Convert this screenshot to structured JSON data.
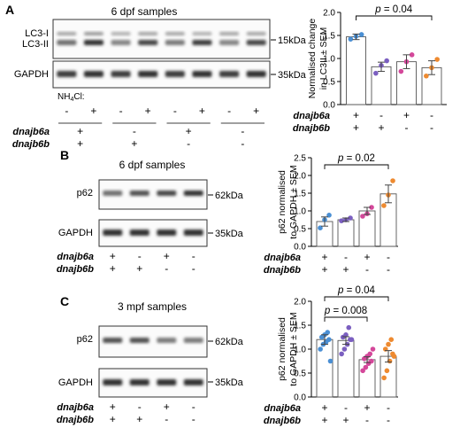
{
  "panels": [
    {
      "letter": "A",
      "title": "6 dpf samples",
      "blot_labels": {
        "top1": "LC3-I",
        "top2": "LC3-II",
        "loading": "GAPDH",
        "mw_top": "15kDa",
        "mw_loading": "35kDa"
      },
      "treatment": {
        "label": "NH4Cl:",
        "label_main": "NH",
        "label_sub": "4",
        "label_end": "Cl:",
        "values": [
          "-",
          "+",
          "-",
          "+",
          "-",
          "+",
          "-",
          "+"
        ]
      },
      "genotype_rows": [
        {
          "label": "dnajb6a",
          "values": [
            "+",
            "-",
            "+",
            "-"
          ]
        },
        {
          "label": "dnajb6b",
          "values": [
            "+",
            "+",
            "-",
            "-"
          ]
        }
      ]
    },
    {
      "letter": "B",
      "title": "6 dpf samples",
      "blot_labels": {
        "top1": "p62",
        "loading": "GAPDH",
        "mw_top": "62kDa",
        "mw_loading": "35kDa"
      },
      "genotype_rows": [
        {
          "label": "dnajb6a",
          "values": [
            "+",
            "-",
            "+",
            "-"
          ]
        },
        {
          "label": "dnajb6b",
          "values": [
            "+",
            "+",
            "-",
            "-"
          ]
        }
      ]
    },
    {
      "letter": "C",
      "title": "3 mpf samples",
      "blot_labels": {
        "top1": "p62",
        "loading": "GAPDH",
        "mw_top": "62kDa",
        "mw_loading": "35kDa"
      },
      "genotype_rows": [
        {
          "label": "dnajb6a",
          "values": [
            "+",
            "-",
            "+",
            "-"
          ]
        },
        {
          "label": "dnajb6b",
          "values": [
            "+",
            "+",
            "-",
            "-"
          ]
        }
      ]
    }
  ],
  "chart_data": [
    {
      "type": "bar",
      "panel": "A",
      "categories": [
        "+/+",
        "-/+",
        "+/-",
        "-/-"
      ],
      "values": [
        1.47,
        0.82,
        0.93,
        0.8
      ],
      "errors": [
        0.06,
        0.1,
        0.15,
        0.15
      ],
      "points": [
        [
          1.42,
          1.48,
          1.52
        ],
        [
          0.68,
          0.85,
          0.95
        ],
        [
          0.72,
          0.93,
          1.08
        ],
        [
          0.62,
          0.8,
          0.98
        ]
      ],
      "colors": [
        "#4a8fd4",
        "#7b5fc0",
        "#d4479a",
        "#ee8a30"
      ],
      "ylabel": "Normalised change in LC3II ± SEM",
      "ylabel_lines": [
        "Normalised change",
        "in LC3II ± SEM"
      ],
      "ylim": [
        0,
        2.0
      ],
      "yticks": [
        "0.0",
        "0.5",
        "1.0",
        "1.5",
        "2.0"
      ],
      "annotation": {
        "text": "p = 0.04",
        "from": 0,
        "to": 3
      },
      "x_rows": [
        {
          "label": "dnajb6a",
          "values": [
            "+",
            "-",
            "+",
            "-"
          ]
        },
        {
          "label": "dnajb6b",
          "values": [
            "+",
            "+",
            "-",
            "-"
          ]
        }
      ]
    },
    {
      "type": "bar",
      "panel": "B",
      "categories": [
        "+/+",
        "-/+",
        "+/-",
        "-/-"
      ],
      "values": [
        0.7,
        0.75,
        1.0,
        1.48
      ],
      "errors": [
        0.13,
        0.05,
        0.1,
        0.25
      ],
      "points": [
        [
          0.52,
          0.75,
          0.88
        ],
        [
          0.72,
          0.75,
          0.8
        ],
        [
          0.85,
          0.92,
          1.1
        ],
        [
          1.15,
          1.45,
          1.85
        ]
      ],
      "colors": [
        "#4a8fd4",
        "#7b5fc0",
        "#d4479a",
        "#ee8a30"
      ],
      "ylabel": "p62 normalised to GAPDH ± SEM",
      "ylabel_lines": [
        "p62 normalised",
        "to GAPDH ± SEM"
      ],
      "ylim": [
        0,
        2.5
      ],
      "yticks": [
        "0.0",
        "0.5",
        "1.0",
        "1.5",
        "2.0",
        "2.5"
      ],
      "annotation": {
        "text": "p = 0.02",
        "from": 0,
        "to": 3
      },
      "x_rows": [
        {
          "label": "dnajb6a",
          "values": [
            "+",
            "-",
            "+",
            "-"
          ]
        },
        {
          "label": "dnajb6b",
          "values": [
            "+",
            "+",
            "-",
            "-"
          ]
        }
      ]
    },
    {
      "type": "bar",
      "panel": "C",
      "categories": [
        "+/+",
        "-/+",
        "+/-",
        "-/-"
      ],
      "values": [
        1.2,
        1.18,
        0.78,
        0.85
      ],
      "errors": [
        0.1,
        0.08,
        0.06,
        0.12
      ],
      "points": [
        [
          1.0,
          1.1,
          1.15,
          1.2,
          1.25,
          1.3,
          1.35,
          0.75
        ],
        [
          0.9,
          1.0,
          1.1,
          1.2,
          1.25,
          1.3,
          1.45,
          1.2
        ],
        [
          0.55,
          0.62,
          0.7,
          0.75,
          0.8,
          0.85,
          0.9,
          1.0
        ],
        [
          0.4,
          0.55,
          0.75,
          0.9,
          1.0,
          1.1,
          1.2,
          0.85
        ]
      ],
      "colors": [
        "#4a8fd4",
        "#7b5fc0",
        "#d4479a",
        "#ee8a30"
      ],
      "ylabel": "p62 normalised to GAPDH ± SEM",
      "ylabel_lines": [
        "p62 normalised",
        "to GAPDH ± SEM"
      ],
      "ylim": [
        0,
        2.0
      ],
      "yticks": [
        "0.0",
        "0.5",
        "1.0",
        "1.5",
        "2.0"
      ],
      "annotations": [
        {
          "text": "p = 0.008",
          "from": 0,
          "to": 2
        },
        {
          "text": "p = 0.04",
          "from": 0,
          "to": 3
        }
      ],
      "x_rows": [
        {
          "label": "dnajb6a",
          "values": [
            "+",
            "-",
            "+",
            "-"
          ]
        },
        {
          "label": "dnajb6b",
          "values": [
            "+",
            "+",
            "-",
            "-"
          ]
        }
      ]
    }
  ]
}
